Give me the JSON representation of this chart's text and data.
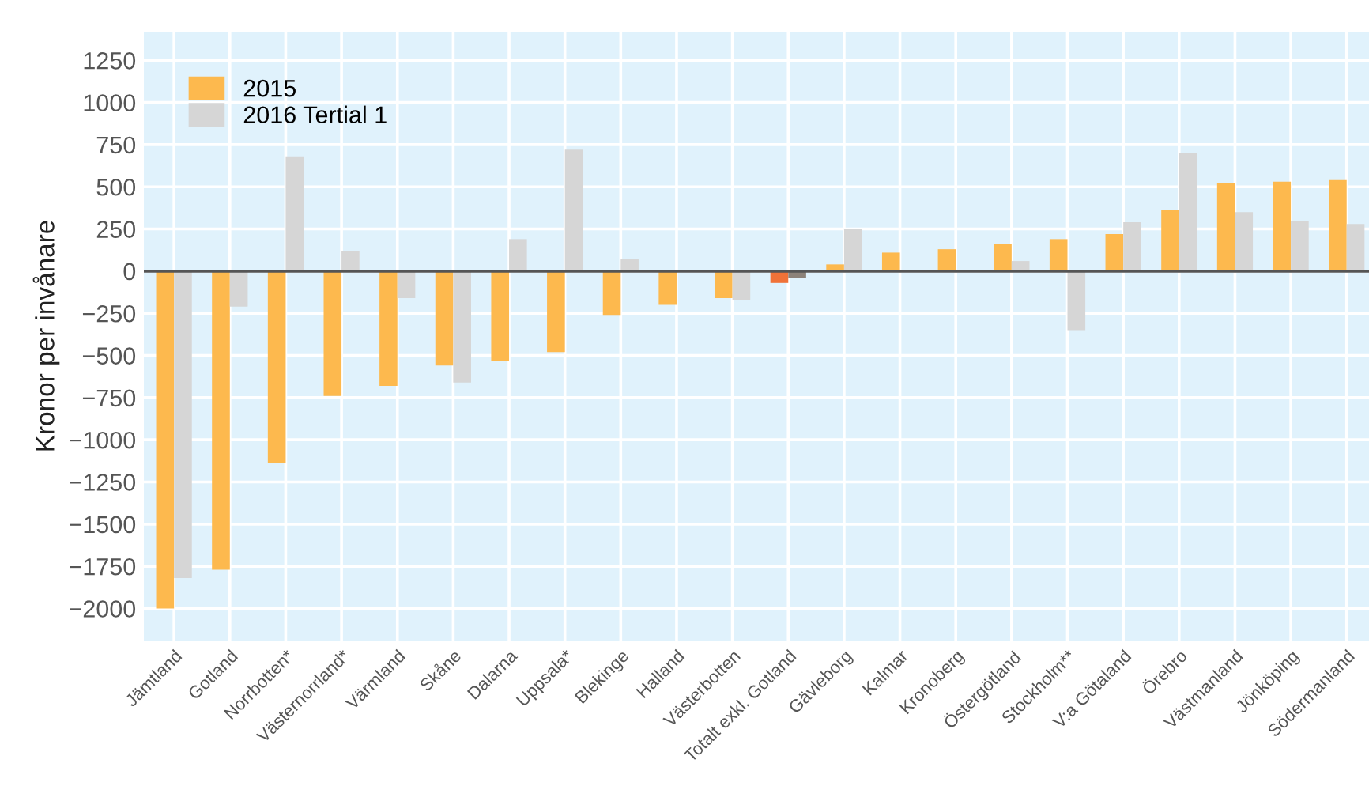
{
  "chart_data": {
    "type": "bar",
    "ylabel": "Kronor per invånare",
    "categories": [
      "Jämtland",
      "Gotland",
      "Norrbotten*",
      "Västernorrland*",
      "Värmland",
      "Skåne",
      "Dalarna",
      "Uppsala*",
      "Blekinge",
      "Halland",
      "Västerbotten",
      "Totalt exkl. Gotland",
      "Gävleborg",
      "Kalmar",
      "Kronoberg",
      "Östergötland",
      "Stockholm**",
      "V:a Götaland",
      "Örebro",
      "Västmanland",
      "Jönköping",
      "Södermanland"
    ],
    "series": [
      {
        "name": "2015",
        "color": "#fdb94e",
        "colors": [
          "#fdb94e",
          "#fdb94e",
          "#fdb94e",
          "#fdb94e",
          "#fdb94e",
          "#fdb94e",
          "#fdb94e",
          "#fdb94e",
          "#fdb94e",
          "#fdb94e",
          "#fdb94e",
          "#f07238",
          "#fdb94e",
          "#fdb94e",
          "#fdb94e",
          "#fdb94e",
          "#fdb94e",
          "#fdb94e",
          "#fdb94e",
          "#fdb94e",
          "#fdb94e",
          "#fdb94e"
        ],
        "values": [
          -2000,
          -1770,
          -1140,
          -740,
          -680,
          -560,
          -530,
          -480,
          -260,
          -200,
          -160,
          -70,
          40,
          110,
          130,
          160,
          190,
          220,
          360,
          520,
          530,
          540
        ]
      },
      {
        "name": "2016 Tertial 1",
        "color": "#d6d6d6",
        "colors": [
          "#d6d6d6",
          "#d6d6d6",
          "#d6d6d6",
          "#d6d6d6",
          "#d6d6d6",
          "#d6d6d6",
          "#d6d6d6",
          "#d6d6d6",
          "#d6d6d6",
          "#d6d6d6",
          "#d6d6d6",
          "#8c8279",
          "#d6d6d6",
          "#d6d6d6",
          "#d6d6d6",
          "#d6d6d6",
          "#d6d6d6",
          "#d6d6d6",
          "#d6d6d6",
          "#d6d6d6",
          "#d6d6d6",
          "#d6d6d6"
        ],
        "values": [
          -1820,
          -210,
          680,
          120,
          -160,
          -660,
          190,
          720,
          70,
          null,
          -170,
          -40,
          250,
          null,
          null,
          60,
          -350,
          290,
          700,
          350,
          300,
          280
        ]
      }
    ],
    "ylim": [
      -2190,
      1420
    ],
    "yticks": [
      {
        "value": -2000,
        "label": "−2000"
      },
      {
        "value": -1750,
        "label": "−1750"
      },
      {
        "value": -1500,
        "label": "−1500"
      },
      {
        "value": -1250,
        "label": "−1250"
      },
      {
        "value": -1000,
        "label": "−1000"
      },
      {
        "value": -750,
        "label": "−750"
      },
      {
        "value": -500,
        "label": "−500"
      },
      {
        "value": -250,
        "label": "−250"
      },
      0,
      250,
      500,
      750,
      1000,
      1250
    ],
    "ref_lines": [
      {
        "axis": "y",
        "value": 0,
        "color": "#555555"
      }
    ],
    "grid": true,
    "legend": "top left"
  }
}
